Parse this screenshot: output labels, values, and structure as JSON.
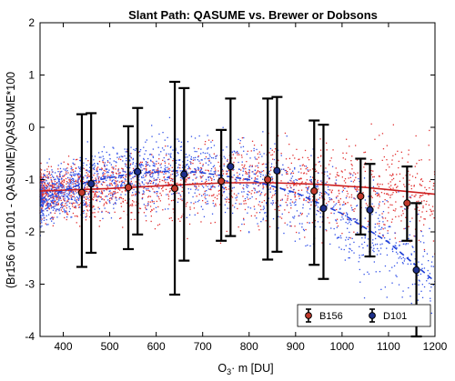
{
  "chart_data": {
    "type": "scatter",
    "title": "Slant Path: QASUME vs. Brewer or Dobsons",
    "xlabel": {
      "base": "O",
      "sub": "3",
      "rest": "· m [DU]"
    },
    "ylabel": "(Br156 or D101 - QASUME)/QASUME*100",
    "xlim": [
      350,
      1200
    ],
    "ylim": [
      -4,
      2
    ],
    "xticks": [
      400,
      500,
      600,
      700,
      800,
      900,
      1000,
      1100,
      1200
    ],
    "yticks": [
      -4,
      -3,
      -2,
      -1,
      0,
      1,
      2
    ],
    "xtick_labels": [
      "400",
      "500",
      "600",
      "700",
      "800",
      "900",
      "1000",
      "1100",
      "1200"
    ],
    "ytick_labels": [
      "-4",
      "-3",
      "-2",
      "-1",
      "0",
      "1",
      "2"
    ],
    "legend_position": "bottom-right",
    "grid": false,
    "series": [
      {
        "name": "B156",
        "color": "#cc1f1f",
        "marker_fill": "#c0392b",
        "points_x": [
          440,
          540,
          640,
          740,
          840,
          940,
          1040,
          1140
        ],
        "mean": [
          -1.25,
          -1.15,
          -1.17,
          -1.03,
          -1.0,
          -1.22,
          -1.32,
          -1.45
        ],
        "lower": [
          -2.67,
          -2.33,
          -3.2,
          -2.17,
          -2.53,
          -2.63,
          -2.05,
          -2.17
        ],
        "upper": [
          0.25,
          0.02,
          0.87,
          -0.05,
          0.55,
          0.13,
          -0.6,
          -0.75
        ],
        "fit": {
          "style": "solid",
          "x": [
            350,
            500,
            650,
            750,
            850,
            950,
            1050,
            1200
          ],
          "y": [
            -1.22,
            -1.17,
            -1.1,
            -1.06,
            -1.06,
            -1.09,
            -1.15,
            -1.28
          ]
        }
      },
      {
        "name": "D101",
        "color": "#1f3fd6",
        "marker_fill": "#1c2f8a",
        "points_x": [
          460,
          560,
          660,
          760,
          860,
          960,
          1060,
          1160
        ],
        "mean": [
          -1.08,
          -0.85,
          -0.9,
          -0.75,
          -0.83,
          -1.55,
          -1.58,
          -2.73
        ],
        "lower": [
          -2.4,
          -2.05,
          -2.55,
          -2.08,
          -2.38,
          -2.9,
          -2.47,
          -4.0
        ],
        "upper": [
          0.27,
          0.37,
          0.75,
          0.55,
          0.58,
          0.05,
          -0.7,
          -1.45
        ],
        "fit": {
          "style": "dashed",
          "x": [
            350,
            450,
            550,
            650,
            700,
            800,
            900,
            1000,
            1100,
            1200
          ],
          "y": [
            -1.38,
            -1.05,
            -0.88,
            -0.83,
            -0.87,
            -1.0,
            -1.25,
            -1.65,
            -2.2,
            -2.95
          ]
        }
      }
    ],
    "scatter_cloud": {
      "count_per_series": 1800,
      "note_colors": {
        "red": "#e23030",
        "blue": "#3050e8"
      }
    }
  }
}
